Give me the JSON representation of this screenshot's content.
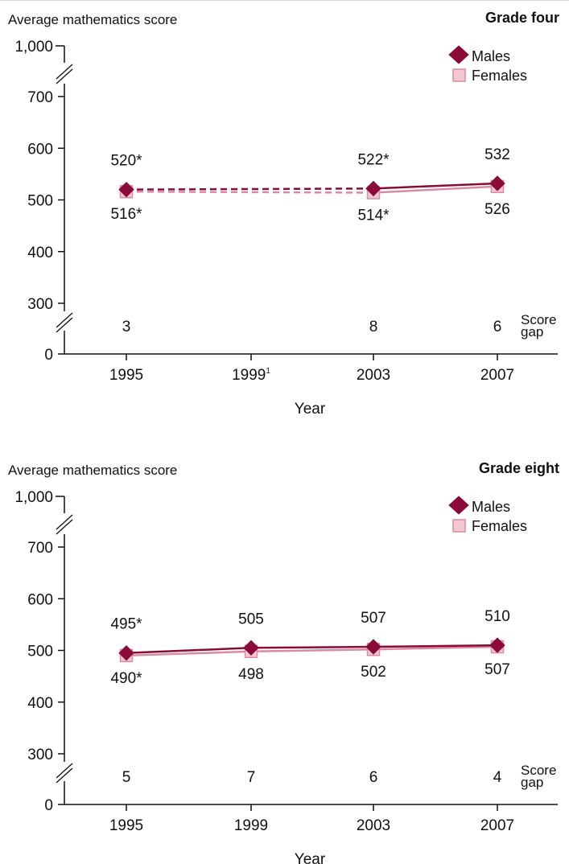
{
  "colors": {
    "males": "#8a0a3a",
    "females_fill": "#f2c7d0",
    "females_line": "#d98aa0",
    "axis": "#111111"
  },
  "chart_data": [
    {
      "type": "line",
      "title": "Grade four",
      "ylabel": "Average mathematics score",
      "xlabel": "Year",
      "x_ticks": [
        {
          "label": "1995",
          "sup": ""
        },
        {
          "label": "1999",
          "sup": "1"
        },
        {
          "label": "2003",
          "sup": ""
        },
        {
          "label": "2007",
          "sup": ""
        }
      ],
      "y_ticks": [
        "1,000",
        "700",
        "600",
        "500",
        "400",
        "300",
        "0"
      ],
      "ylim": [
        0,
        1000
      ],
      "axis_breaks": true,
      "legend": {
        "position": "top-right",
        "entries": [
          "Males",
          "Females"
        ]
      },
      "series": [
        {
          "name": "Males",
          "values": [
            520,
            null,
            522,
            532
          ],
          "value_labels": [
            "520*",
            "",
            "522*",
            "532"
          ],
          "segments_dashed": [
            true,
            false,
            false
          ]
        },
        {
          "name": "Females",
          "values": [
            516,
            null,
            514,
            526
          ],
          "value_labels": [
            "516*",
            "",
            "514*",
            "526"
          ],
          "segments_dashed": [
            true,
            false,
            false
          ]
        }
      ],
      "score_gap": {
        "label_line1": "Score",
        "label_line2": "gap",
        "values": [
          "3",
          "",
          "8",
          "6"
        ]
      }
    },
    {
      "type": "line",
      "title": "Grade eight",
      "ylabel": "Average mathematics score",
      "xlabel": "Year",
      "x_ticks": [
        {
          "label": "1995",
          "sup": ""
        },
        {
          "label": "1999",
          "sup": ""
        },
        {
          "label": "2003",
          "sup": ""
        },
        {
          "label": "2007",
          "sup": ""
        }
      ],
      "y_ticks": [
        "1,000",
        "700",
        "600",
        "500",
        "400",
        "300",
        "0"
      ],
      "ylim": [
        0,
        1000
      ],
      "axis_breaks": true,
      "legend": {
        "position": "top-right",
        "entries": [
          "Males",
          "Females"
        ]
      },
      "series": [
        {
          "name": "Males",
          "values": [
            495,
            505,
            507,
            510
          ],
          "value_labels": [
            "495*",
            "505",
            "507",
            "510"
          ],
          "segments_dashed": [
            false,
            false,
            false
          ]
        },
        {
          "name": "Females",
          "values": [
            490,
            498,
            502,
            507
          ],
          "value_labels": [
            "490*",
            "498",
            "502",
            "507"
          ],
          "segments_dashed": [
            false,
            false,
            false
          ]
        }
      ],
      "score_gap": {
        "label_line1": "Score",
        "label_line2": "gap",
        "values": [
          "5",
          "7",
          "6",
          "4"
        ]
      }
    }
  ]
}
